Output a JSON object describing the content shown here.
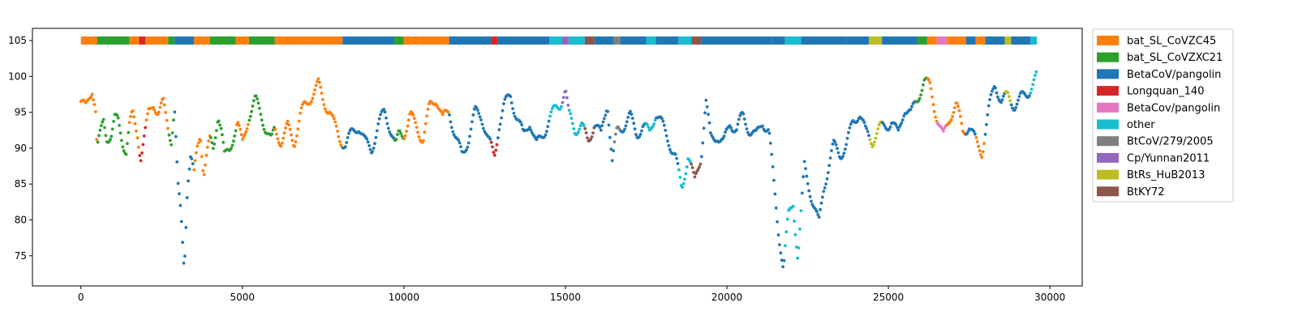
{
  "chart_data": {
    "type": "scatter",
    "title": "",
    "xlabel": "",
    "ylabel": "",
    "xlim": [
      -1500,
      31000
    ],
    "ylim": [
      70.8,
      106.7
    ],
    "xticks": [
      0,
      5000,
      10000,
      15000,
      20000,
      25000,
      30000
    ],
    "yticks": [
      75,
      80,
      85,
      90,
      95,
      100,
      105
    ],
    "grid": false,
    "legend_position": "outside-right-top",
    "genome_length": 29600,
    "band_y": 105,
    "legend": [
      {
        "name": "bat_SL_CoVZC45",
        "color": "#ff7f0e"
      },
      {
        "name": "bat_SL_CoVZXC21",
        "color": "#2ca02c"
      },
      {
        "name": "BetaCoV/pangolin",
        "color": "#1f77b4"
      },
      {
        "name": "Longquan_140",
        "color": "#d62728"
      },
      {
        "name": "BetaCov/pangolin",
        "color": "#e377c2"
      },
      {
        "name": "other",
        "color": "#17becf"
      },
      {
        "name": "BtCoV/279/2005",
        "color": "#7f7f7f"
      },
      {
        "name": "Cp/Yunnan2011",
        "color": "#9467bd"
      },
      {
        "name": "BtRs_HuB2013",
        "color": "#bcbd22"
      },
      {
        "name": "BtKY72",
        "color": "#8c564b"
      }
    ],
    "identity_profile": [
      [
        0,
        96.5
      ],
      [
        150,
        95.0
      ],
      [
        350,
        97.8
      ],
      [
        450,
        95.5
      ],
      [
        500,
        89.5
      ],
      [
        600,
        91.5
      ],
      [
        700,
        93.8
      ],
      [
        800,
        92.0
      ],
      [
        950,
        92.5
      ],
      [
        1050,
        94.5
      ],
      [
        1150,
        94.2
      ],
      [
        1300,
        91.0
      ],
      [
        1400,
        89.5
      ],
      [
        1500,
        92.5
      ],
      [
        1600,
        94.0
      ],
      [
        1750,
        91.5
      ],
      [
        1850,
        88.5
      ],
      [
        1950,
        91.0
      ],
      [
        2100,
        95.0
      ],
      [
        2250,
        97.0
      ],
      [
        2400,
        95.5
      ],
      [
        2550,
        96.5
      ],
      [
        2700,
        93.0
      ],
      [
        2800,
        91.0
      ],
      [
        2900,
        95.0
      ],
      [
        3000,
        84.0
      ],
      [
        3100,
        80.0
      ],
      [
        3200,
        73.0
      ],
      [
        3300,
        85.0
      ],
      [
        3400,
        89.0
      ],
      [
        3500,
        86.5
      ],
      [
        3600,
        90.5
      ],
      [
        3700,
        93.0
      ],
      [
        3800,
        87.0
      ],
      [
        3900,
        89.5
      ],
      [
        4000,
        91.0
      ],
      [
        4100,
        89.5
      ],
      [
        4250,
        94.5
      ],
      [
        4350,
        92.0
      ],
      [
        4450,
        88.0
      ],
      [
        4600,
        89.5
      ],
      [
        4750,
        92.5
      ],
      [
        4850,
        94.0
      ],
      [
        5000,
        91.0
      ],
      [
        5200,
        95.0
      ],
      [
        5400,
        96.5
      ],
      [
        5550,
        94.5
      ],
      [
        5700,
        92.5
      ],
      [
        5900,
        90.5
      ],
      [
        6000,
        92.5
      ],
      [
        6200,
        91.5
      ],
      [
        6400,
        93.5
      ],
      [
        6600,
        91.0
      ],
      [
        6800,
        94.5
      ],
      [
        7000,
        95.5
      ],
      [
        7200,
        97.5
      ],
      [
        7350,
        98.8
      ],
      [
        7500,
        97.0
      ],
      [
        7700,
        96.0
      ],
      [
        7850,
        93.5
      ],
      [
        8000,
        91.5
      ],
      [
        8200,
        90.0
      ],
      [
        8400,
        91.5
      ],
      [
        8600,
        93.0
      ],
      [
        8800,
        91.0
      ],
      [
        9000,
        90.5
      ],
      [
        9200,
        93.5
      ],
      [
        9400,
        95.0
      ],
      [
        9600,
        92.0
      ],
      [
        9750,
        89.5
      ],
      [
        9850,
        91.5
      ],
      [
        10000,
        92.0
      ],
      [
        10200,
        95.0
      ],
      [
        10400,
        93.5
      ],
      [
        10600,
        91.5
      ],
      [
        10800,
        95.5
      ],
      [
        11000,
        96.5
      ],
      [
        11200,
        93.5
      ],
      [
        11400,
        95.5
      ],
      [
        11600,
        92.0
      ],
      [
        11800,
        89.5
      ],
      [
        12000,
        91.5
      ],
      [
        12200,
        94.5
      ],
      [
        12400,
        94.0
      ],
      [
        12600,
        91.0
      ],
      [
        12800,
        89.0
      ],
      [
        12950,
        94.0
      ],
      [
        13100,
        96.5
      ],
      [
        13300,
        97.5
      ],
      [
        13500,
        94.0
      ],
      [
        13700,
        91.0
      ],
      [
        13900,
        93.5
      ],
      [
        14100,
        90.5
      ],
      [
        14300,
        92.5
      ],
      [
        14500,
        94.5
      ],
      [
        14700,
        95.5
      ],
      [
        14850,
        96.0
      ],
      [
        15000,
        97.5
      ],
      [
        15100,
        94.0
      ],
      [
        15300,
        92.5
      ],
      [
        15500,
        93.5
      ],
      [
        15700,
        91.5
      ],
      [
        15900,
        94.0
      ],
      [
        16100,
        91.5
      ],
      [
        16300,
        96.0
      ],
      [
        16450,
        87.5
      ],
      [
        16600,
        92.0
      ],
      [
        16800,
        93.5
      ],
      [
        17000,
        95.0
      ],
      [
        17200,
        92.5
      ],
      [
        17400,
        93.0
      ],
      [
        17600,
        91.5
      ],
      [
        17800,
        94.5
      ],
      [
        18000,
        93.0
      ],
      [
        18200,
        91.5
      ],
      [
        18400,
        89.5
      ],
      [
        18600,
        84.5
      ],
      [
        18800,
        89.0
      ],
      [
        19000,
        84.5
      ],
      [
        19200,
        88.5
      ],
      [
        19350,
        96.5
      ],
      [
        19500,
        91.5
      ],
      [
        19700,
        92.5
      ],
      [
        19900,
        91.0
      ],
      [
        20100,
        93.5
      ],
      [
        20300,
        92.0
      ],
      [
        20500,
        94.0
      ],
      [
        20700,
        92.5
      ],
      [
        20900,
        92.0
      ],
      [
        21100,
        94.5
      ],
      [
        21300,
        92.5
      ],
      [
        21450,
        85.0
      ],
      [
        21600,
        78.0
      ],
      [
        21750,
        72.5
      ],
      [
        21900,
        80.0
      ],
      [
        22050,
        82.5
      ],
      [
        22200,
        75.0
      ],
      [
        22400,
        88.0
      ],
      [
        22550,
        85.0
      ],
      [
        22700,
        82.0
      ],
      [
        22850,
        79.0
      ],
      [
        23000,
        84.0
      ],
      [
        23150,
        87.0
      ],
      [
        23300,
        90.0
      ],
      [
        23500,
        89.5
      ],
      [
        23700,
        91.0
      ],
      [
        23900,
        94.0
      ],
      [
        24100,
        95.0
      ],
      [
        24300,
        91.5
      ],
      [
        24500,
        90.5
      ],
      [
        24700,
        92.5
      ],
      [
        24900,
        93.5
      ],
      [
        25100,
        94.5
      ],
      [
        25300,
        92.0
      ],
      [
        25500,
        95.5
      ],
      [
        25700,
        94.0
      ],
      [
        25900,
        96.5
      ],
      [
        26100,
        99.5
      ],
      [
        26300,
        99.0
      ],
      [
        26500,
        95.0
      ],
      [
        26700,
        91.5
      ],
      [
        26900,
        94.0
      ],
      [
        27100,
        95.5
      ],
      [
        27300,
        92.0
      ],
      [
        27500,
        93.5
      ],
      [
        27700,
        91.5
      ],
      [
        27900,
        90.0
      ],
      [
        28100,
        95.0
      ],
      [
        28300,
        98.5
      ],
      [
        28500,
        96.0
      ],
      [
        28700,
        97.0
      ],
      [
        28900,
        96.5
      ],
      [
        29100,
        97.5
      ],
      [
        29300,
        98.0
      ],
      [
        29500,
        99.0
      ],
      [
        29600,
        99.5
      ]
    ],
    "segments": [
      [
        0,
        500,
        0
      ],
      [
        500,
        1500,
        1
      ],
      [
        1500,
        1800,
        0
      ],
      [
        1800,
        2000,
        3
      ],
      [
        2000,
        2700,
        0
      ],
      [
        2700,
        2900,
        1
      ],
      [
        2900,
        3500,
        2
      ],
      [
        3500,
        4000,
        0
      ],
      [
        4000,
        4800,
        1
      ],
      [
        4800,
        5200,
        0
      ],
      [
        5200,
        6000,
        1
      ],
      [
        6000,
        7000,
        0
      ],
      [
        7000,
        8100,
        0
      ],
      [
        8100,
        9700,
        2
      ],
      [
        9700,
        10000,
        1
      ],
      [
        10000,
        10500,
        0
      ],
      [
        10500,
        11400,
        0
      ],
      [
        11400,
        12700,
        2
      ],
      [
        12700,
        12900,
        3
      ],
      [
        12900,
        14500,
        2
      ],
      [
        14500,
        14900,
        5
      ],
      [
        14900,
        15100,
        7
      ],
      [
        15100,
        15600,
        5
      ],
      [
        15600,
        15900,
        9
      ],
      [
        15900,
        16500,
        2
      ],
      [
        16500,
        16700,
        6
      ],
      [
        16700,
        17500,
        2
      ],
      [
        17500,
        17800,
        5
      ],
      [
        17800,
        18500,
        2
      ],
      [
        18500,
        18900,
        5
      ],
      [
        18900,
        19200,
        9
      ],
      [
        19200,
        21400,
        2
      ],
      [
        21400,
        21800,
        2
      ],
      [
        21800,
        22300,
        5
      ],
      [
        22300,
        23700,
        2
      ],
      [
        23700,
        24400,
        2
      ],
      [
        24400,
        24800,
        8
      ],
      [
        24800,
        25900,
        2
      ],
      [
        25900,
        26200,
        1
      ],
      [
        26200,
        26500,
        0
      ],
      [
        26500,
        26800,
        4
      ],
      [
        26800,
        27400,
        0
      ],
      [
        27400,
        27700,
        2
      ],
      [
        27700,
        28000,
        0
      ],
      [
        28000,
        28600,
        2
      ],
      [
        28600,
        28800,
        8
      ],
      [
        28800,
        29400,
        2
      ],
      [
        29400,
        29600,
        5
      ]
    ]
  }
}
